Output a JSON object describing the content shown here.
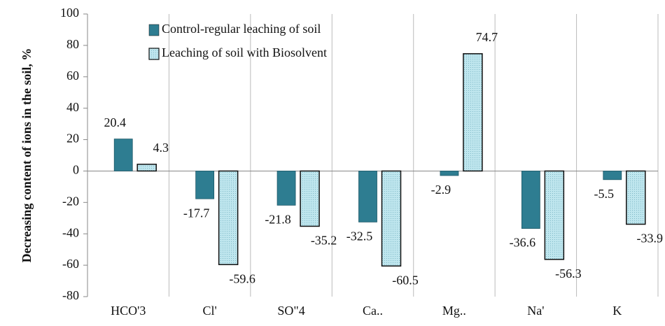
{
  "chart_data": {
    "type": "bar",
    "y_label": "Decreasing content of ions in the soil, %",
    "categories": [
      "HCO'3",
      "Cl'",
      "SO\"4",
      "Ca..",
      "Mg..",
      "Na'",
      "K"
    ],
    "series": [
      {
        "name": "Control-regular leaching of soil",
        "color": "#2e7d91",
        "values": [
          20.4,
          -17.7,
          -21.8,
          -32.5,
          -2.9,
          -36.6,
          -5.5
        ]
      },
      {
        "name": "Leaching of soil with Biosolvent",
        "color": "#bfe6ee",
        "values": [
          4.3,
          -59.6,
          -35.2,
          -60.5,
          74.7,
          -56.3,
          -33.9
        ]
      }
    ],
    "ylim": [
      -80,
      100
    ],
    "yticks": [
      -80,
      -60,
      -40,
      -20,
      0,
      20,
      40,
      60,
      80,
      100
    ],
    "legend": "top-left"
  }
}
